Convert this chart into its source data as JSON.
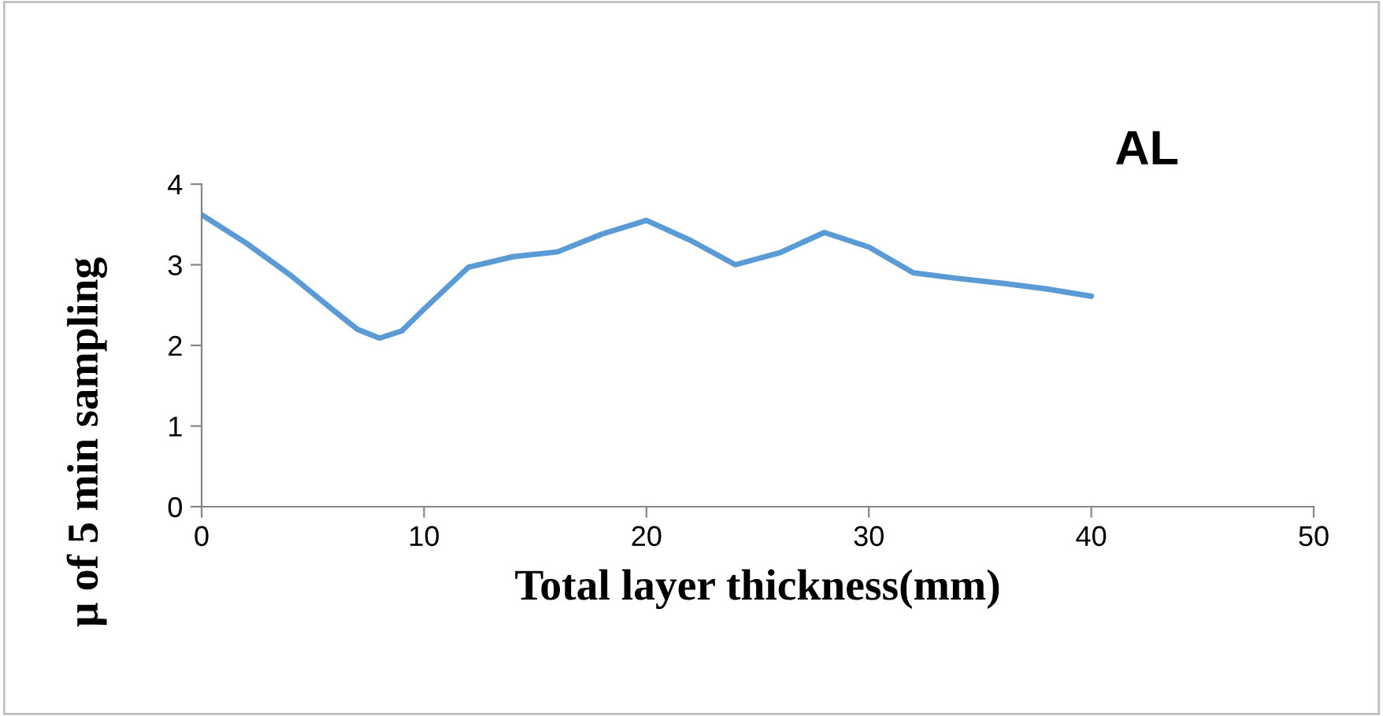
{
  "chart_data": {
    "type": "line",
    "title": "AL",
    "xlabel": "Total layer thickness(mm)",
    "ylabel": "µ of 5 min sampling",
    "x": [
      0,
      2,
      4,
      6,
      7,
      8,
      9,
      10,
      12,
      14,
      16,
      18,
      20,
      22,
      24,
      26,
      28,
      30,
      32,
      34,
      36,
      38,
      40
    ],
    "series": [
      {
        "color": "#5b9bd5",
        "values": [
          3.62,
          3.27,
          2.87,
          2.42,
          2.2,
          2.09,
          2.18,
          2.45,
          2.97,
          3.1,
          3.16,
          3.38,
          3.55,
          3.3,
          3.0,
          3.15,
          3.4,
          3.22,
          2.9,
          2.83,
          2.77,
          2.7,
          2.61
        ]
      }
    ],
    "xlim": [
      0,
      50
    ],
    "xticks": [
      0,
      10,
      20,
      30,
      40,
      50
    ],
    "ylim": [
      0,
      4
    ],
    "yticks": [
      0,
      1,
      2,
      3,
      4
    ],
    "grid": false,
    "legend": false,
    "marker": "none",
    "line_style": "solid"
  }
}
